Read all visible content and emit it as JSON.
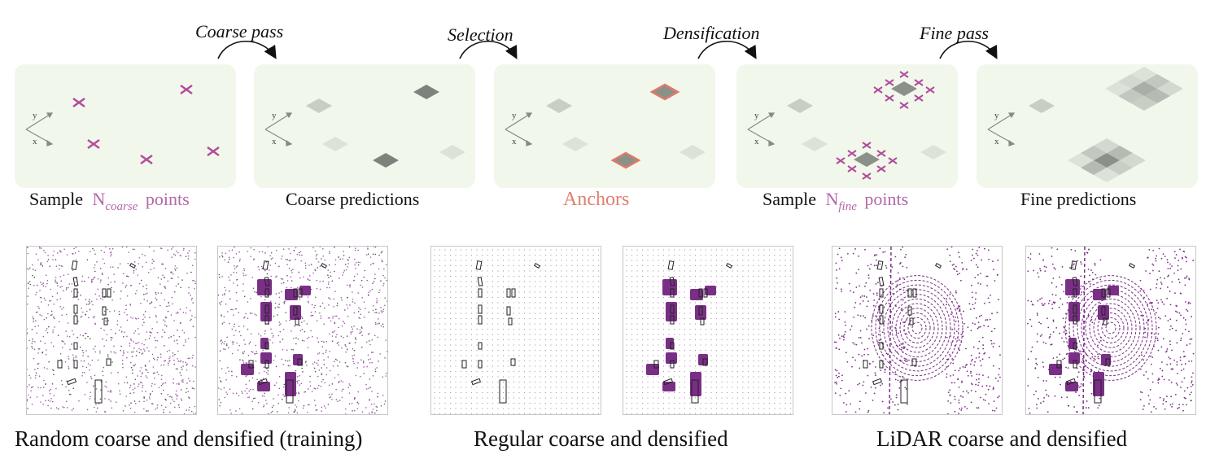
{
  "steps": [
    "Coarse pass",
    "Selection",
    "Densification",
    "Fine pass"
  ],
  "axis": {
    "y": "y",
    "x": "x"
  },
  "captions": {
    "sample_coarse": {
      "pre": "Sample",
      "n": "N",
      "sub": "coarse",
      "post": "points"
    },
    "coarse_predictions": "Coarse predictions",
    "anchors": "Anchors",
    "sample_fine": {
      "pre": "Sample",
      "n": "N",
      "sub": "fine",
      "post": "points"
    },
    "fine_predictions": "Fine predictions"
  },
  "bottom_captions": [
    "Random coarse and densified (training)",
    "Regular coarse and densified",
    "LiDAR coarse and densified"
  ],
  "colors": {
    "panel_bg": "#f2f7ec",
    "cross": "#b24d9d",
    "anchor_outline": "#e07a6a",
    "densified": "#7a2f86",
    "points": "#9b59a6"
  }
}
